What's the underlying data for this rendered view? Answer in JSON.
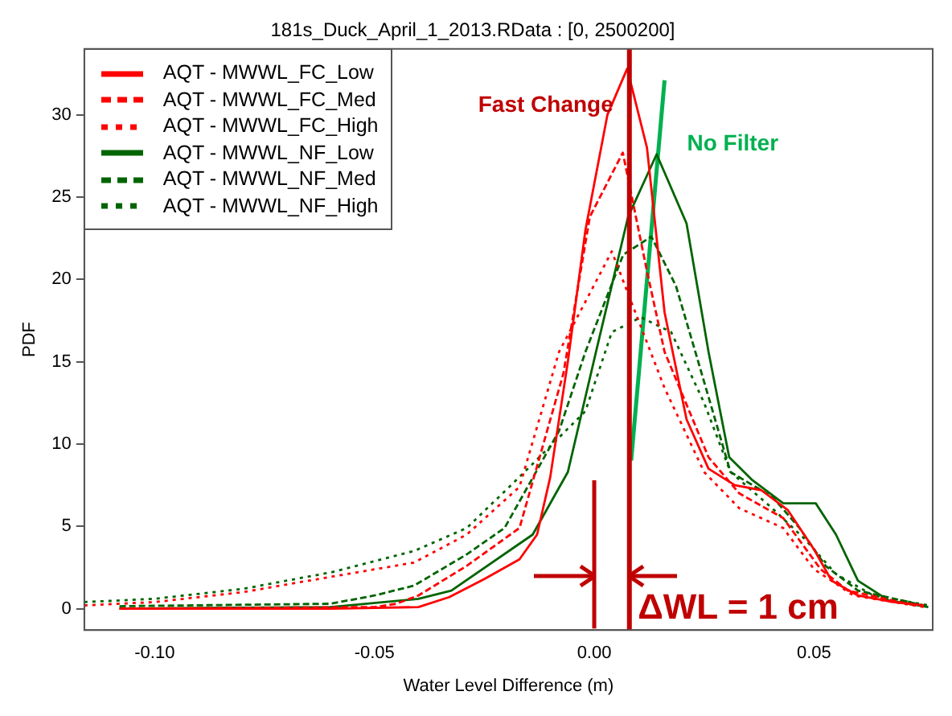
{
  "chart_data": {
    "type": "line",
    "title": "181s_Duck_April_1_2013.RData : [0, 2500200]",
    "xlabel": "Water Level Difference (m)",
    "ylabel": "PDF",
    "xlim": [
      -0.116,
      0.077
    ],
    "ylim": [
      -1.3,
      34
    ],
    "xticks": [
      {
        "value": -0.1,
        "label": "-0.10"
      },
      {
        "value": -0.05,
        "label": "-0.05"
      },
      {
        "value": 0,
        "label": "0.00"
      },
      {
        "value": 0.05,
        "label": "0.05"
      }
    ],
    "yticks": [
      0,
      5,
      10,
      15,
      20,
      25,
      30
    ],
    "grid": false,
    "legend": "top left",
    "series": [
      {
        "name": "AQT - MWWL_FC_Low",
        "color": "#ff0000",
        "line_style": "solid",
        "x": [
          -0.108,
          -0.06,
          -0.04,
          -0.033,
          -0.025,
          -0.017,
          -0.013,
          -0.01,
          -0.006,
          -0.002,
          0.003,
          0.0075,
          0.012,
          0.016,
          0.021,
          0.026,
          0.032,
          0.038,
          0.044,
          0.05,
          0.054,
          0.06,
          0.068,
          0.075
        ],
        "values": [
          0,
          0,
          0.1,
          0.7,
          1.8,
          3,
          4.5,
          8,
          15,
          23,
          30,
          32.8,
          28,
          18,
          11.5,
          8.5,
          7.5,
          7.2,
          6,
          3.6,
          1.7,
          0.8,
          0.4,
          0.2
        ]
      },
      {
        "name": "AQT - MWWL_FC_Med",
        "color": "#ff0000",
        "line_style": "dashed",
        "x": [
          -0.108,
          -0.05,
          -0.045,
          -0.04,
          -0.029,
          -0.017,
          -0.007,
          -0.001,
          0.0065,
          0.012,
          0.016,
          0.026,
          0.033,
          0.043,
          0.0515,
          0.0577,
          0.073
        ],
        "values": [
          0,
          0.1,
          0.3,
          0.8,
          2.6,
          4.9,
          14.3,
          23.8,
          27.7,
          20.5,
          15.6,
          9.2,
          7,
          5.5,
          2.4,
          1.1,
          0.2
        ]
      },
      {
        "name": "AQT - MWWL_FC_High",
        "color": "#ff0000",
        "line_style": "dotted",
        "x": [
          -0.116,
          -0.1,
          -0.08,
          -0.065,
          -0.041,
          -0.029,
          -0.017,
          -0.008,
          0.004,
          0.016,
          0.025,
          0.033,
          0.043,
          0.05,
          0.059,
          0.075
        ],
        "values": [
          0.2,
          0.4,
          1,
          1.7,
          2.8,
          4.5,
          7.4,
          15.6,
          21.7,
          13.4,
          8.3,
          6.1,
          4.9,
          2.4,
          0.8,
          0.1
        ]
      },
      {
        "name": "AQT - MWWL_NF_Low",
        "color": "#006400",
        "line_style": "solid",
        "x": [
          -0.108,
          -0.06,
          -0.04,
          -0.0325,
          -0.014,
          -0.006,
          0.0004,
          0.0077,
          0.0142,
          0.021,
          0.026,
          0.0307,
          0.036,
          0.043,
          0.0504,
          0.055,
          0.06,
          0.067,
          0.076
        ],
        "values": [
          0,
          0.1,
          0.6,
          1.1,
          4.5,
          8.3,
          15.6,
          23.8,
          27.6,
          23.4,
          15.6,
          9.2,
          7.8,
          6.4,
          6.4,
          4.5,
          1.7,
          0.5,
          0.1
        ]
      },
      {
        "name": "AQT - MWWL_NF_Med",
        "color": "#006400",
        "line_style": "dashed",
        "x": [
          -0.108,
          -0.06,
          -0.05,
          -0.041,
          -0.029,
          -0.0204,
          -0.008,
          -0.002,
          0.0066,
          0.013,
          0.0186,
          0.023,
          0.031,
          0.0405,
          0.0467,
          0.0526,
          0.06,
          0.075
        ],
        "values": [
          0.15,
          0.3,
          0.8,
          1.4,
          3.3,
          4.9,
          10.8,
          15.6,
          21.5,
          22.6,
          19.6,
          15.6,
          8.3,
          6.8,
          4.9,
          2.6,
          1.1,
          0.2
        ]
      },
      {
        "name": "AQT - MWWL_NF_High",
        "color": "#006400",
        "line_style": "dotted",
        "x": [
          -0.116,
          -0.1,
          -0.08,
          -0.06,
          -0.041,
          -0.029,
          -0.017,
          -0.002,
          0.004,
          0.0106,
          0.0175,
          0.025,
          0.031,
          0.0405,
          0.048,
          0.055,
          0.0635,
          0.076
        ],
        "values": [
          0.4,
          0.6,
          1.2,
          2.2,
          3.5,
          4.9,
          8,
          12,
          16.8,
          17.7,
          16.8,
          12.5,
          8.3,
          6.1,
          4.2,
          2.1,
          0.8,
          0.2
        ]
      },
      {
        "color": "#00b050",
        "line_style": "solid",
        "x": [
          0.0084,
          0.016
        ],
        "values": [
          9,
          32.1
        ]
      },
      {
        "color": "#c00000",
        "line_style": "solid",
        "x": [
          0,
          0
        ],
        "values": [
          -1.2,
          7.8
        ]
      }
    ],
    "ref_lines": [
      {
        "axis": "x",
        "value": 0.008,
        "color": "#c00000"
      }
    ],
    "annotations": [
      "Fast Change",
      "No Filter",
      {
        "text": "ΔWL = 1 cm",
        "x": 0.0099,
        "y": 0
      }
    ]
  }
}
